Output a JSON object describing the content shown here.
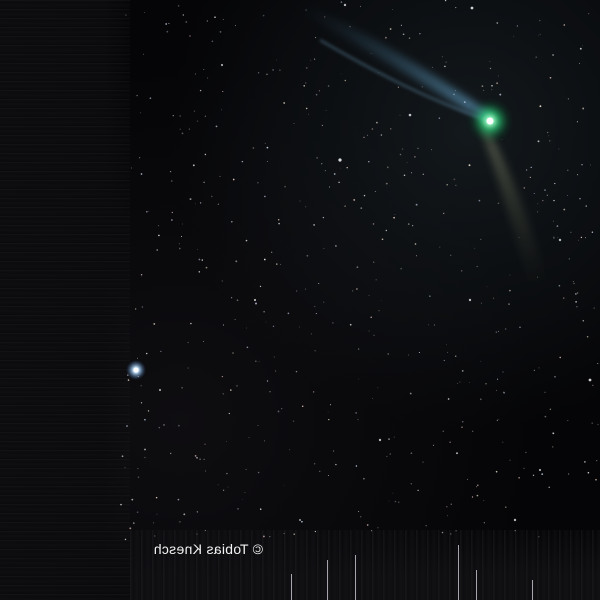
{
  "image": {
    "subject": "",
    "watermark_text": "© Tobias Knesch",
    "watermark_mirrored": true,
    "colors": {
      "sky": "#050507",
      "comet_coma": "#3fe08a",
      "comet_core": "#eafff0",
      "ion_tail": "#5a8fb0",
      "dust_tail": "#8a8f6a",
      "bright_star": "#bfe3ff",
      "watermark": "#f2f2f2"
    }
  }
}
